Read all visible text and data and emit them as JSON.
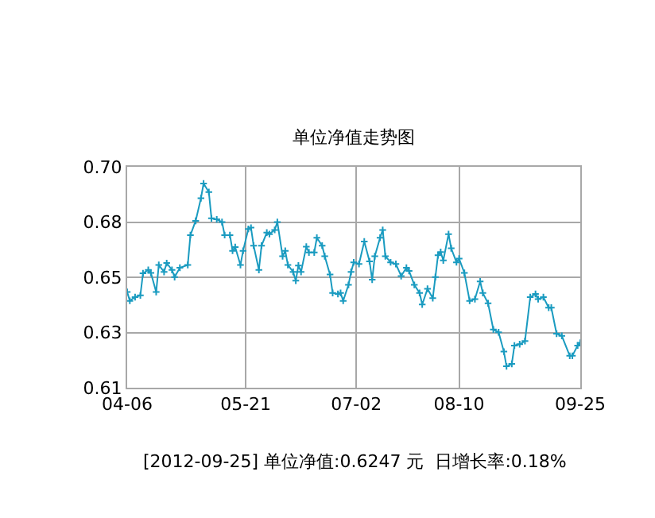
{
  "chart_data": {
    "type": "line",
    "title": "单位净值走势图",
    "annotations": [
      "[2012-09-25] 单位净值:0.6247 元  日增长率:0.18%"
    ],
    "x": [
      "2012-04-06",
      "2012-04-07",
      "2012-04-09",
      "2012-04-11",
      "2012-04-12",
      "2012-04-14",
      "2012-04-15",
      "2012-04-17",
      "2012-04-18",
      "2012-04-20",
      "2012-04-21",
      "2012-04-23",
      "2012-04-24",
      "2012-04-26",
      "2012-04-29",
      "2012-04-30",
      "2012-05-02",
      "2012-05-04",
      "2012-05-05",
      "2012-05-07",
      "2012-05-08",
      "2012-05-10",
      "2012-05-12",
      "2012-05-13",
      "2012-05-15",
      "2012-05-16",
      "2012-05-17",
      "2012-05-19",
      "2012-05-20",
      "2012-05-22",
      "2012-05-23",
      "2012-05-24",
      "2012-05-26",
      "2012-05-27",
      "2012-05-29",
      "2012-05-30",
      "2012-06-01",
      "2012-06-02",
      "2012-06-04",
      "2012-06-05",
      "2012-06-06",
      "2012-06-08",
      "2012-06-09",
      "2012-06-10",
      "2012-06-11",
      "2012-06-13",
      "2012-06-14",
      "2012-06-16",
      "2012-06-17",
      "2012-06-19",
      "2012-06-20",
      "2012-06-22",
      "2012-06-23",
      "2012-06-25",
      "2012-06-26",
      "2012-06-27",
      "2012-06-29",
      "2012-06-30",
      "2012-07-01",
      "2012-07-03",
      "2012-07-05",
      "2012-07-07",
      "2012-07-08",
      "2012-07-09",
      "2012-07-11",
      "2012-07-12",
      "2012-07-13",
      "2012-07-15",
      "2012-07-17",
      "2012-07-19",
      "2012-07-21",
      "2012-07-22",
      "2012-07-24",
      "2012-07-26",
      "2012-07-27",
      "2012-07-29",
      "2012-07-31",
      "2012-08-01",
      "2012-08-02",
      "2012-08-03",
      "2012-08-04",
      "2012-08-06",
      "2012-08-07",
      "2012-08-09",
      "2012-08-10",
      "2012-08-12",
      "2012-08-14",
      "2012-08-16",
      "2012-08-18",
      "2012-08-19",
      "2012-08-21",
      "2012-08-23",
      "2012-08-25",
      "2012-08-27",
      "2012-08-28",
      "2012-08-30",
      "2012-08-31",
      "2012-09-02",
      "2012-09-04",
      "2012-09-06",
      "2012-09-08",
      "2012-09-09",
      "2012-09-11",
      "2012-09-13",
      "2012-09-14",
      "2012-09-16",
      "2012-09-18",
      "2012-09-21",
      "2012-09-22",
      "2012-09-24",
      "2012-09-25"
    ],
    "series": [
      {
        "color": "#1a9bc0",
        "values": [
          0.649,
          0.6454,
          0.6469,
          0.6476,
          0.6566,
          0.658,
          0.6568,
          0.649,
          0.66,
          0.6572,
          0.6608,
          0.658,
          0.6551,
          0.6589,
          0.66,
          0.6722,
          0.678,
          0.6872,
          0.6932,
          0.6897,
          0.679,
          0.6786,
          0.6775,
          0.6722,
          0.6722,
          0.6658,
          0.6673,
          0.66,
          0.6658,
          0.6747,
          0.6752,
          0.6679,
          0.658,
          0.6679,
          0.6732,
          0.6726,
          0.6743,
          0.6775,
          0.6636,
          0.6658,
          0.66,
          0.6572,
          0.6536,
          0.6598,
          0.6572,
          0.6675,
          0.6651,
          0.6651,
          0.6711,
          0.6679,
          0.6636,
          0.6561,
          0.6486,
          0.6482,
          0.6486,
          0.6454,
          0.6519,
          0.6572,
          0.6611,
          0.6604,
          0.6696,
          0.6615,
          0.654,
          0.6636,
          0.6711,
          0.6743,
          0.6636,
          0.6611,
          0.6604,
          0.6555,
          0.6589,
          0.6576,
          0.6519,
          0.6486,
          0.6439,
          0.6503,
          0.6465,
          0.6551,
          0.664,
          0.6653,
          0.6619,
          0.6726,
          0.6668,
          0.6611,
          0.6626,
          0.6568,
          0.6454,
          0.6461,
          0.6533,
          0.6486,
          0.6444,
          0.6337,
          0.6326,
          0.6247,
          0.6187,
          0.6197,
          0.6272,
          0.6277,
          0.629,
          0.6469,
          0.6482,
          0.6461,
          0.6469,
          0.6426,
          0.6426,
          0.632,
          0.6311,
          0.623,
          0.623,
          0.6272,
          0.6283
        ]
      }
    ],
    "marker": "cross",
    "line_style": "solid",
    "grid": true,
    "xlim": [
      "2012-04-06",
      "2012-09-25"
    ],
    "xticks": [
      {
        "value": "2012-04-06",
        "label": "04-06"
      },
      {
        "value": "2012-05-21",
        "label": "05-21"
      },
      {
        "value": "2012-07-02",
        "label": "07-02"
      },
      {
        "value": "2012-08-10",
        "label": "08-10"
      },
      {
        "value": "2012-09-25",
        "label": "09-25"
      }
    ],
    "ylim": [
      0.61,
      0.7
    ],
    "yticks": [
      {
        "value": 0.61,
        "label": "0.61"
      },
      {
        "value": 0.6325,
        "label": "0.63"
      },
      {
        "value": 0.655,
        "label": "0.65"
      },
      {
        "value": 0.6775,
        "label": "0.68"
      },
      {
        "value": 0.7,
        "label": "0.70"
      }
    ]
  }
}
